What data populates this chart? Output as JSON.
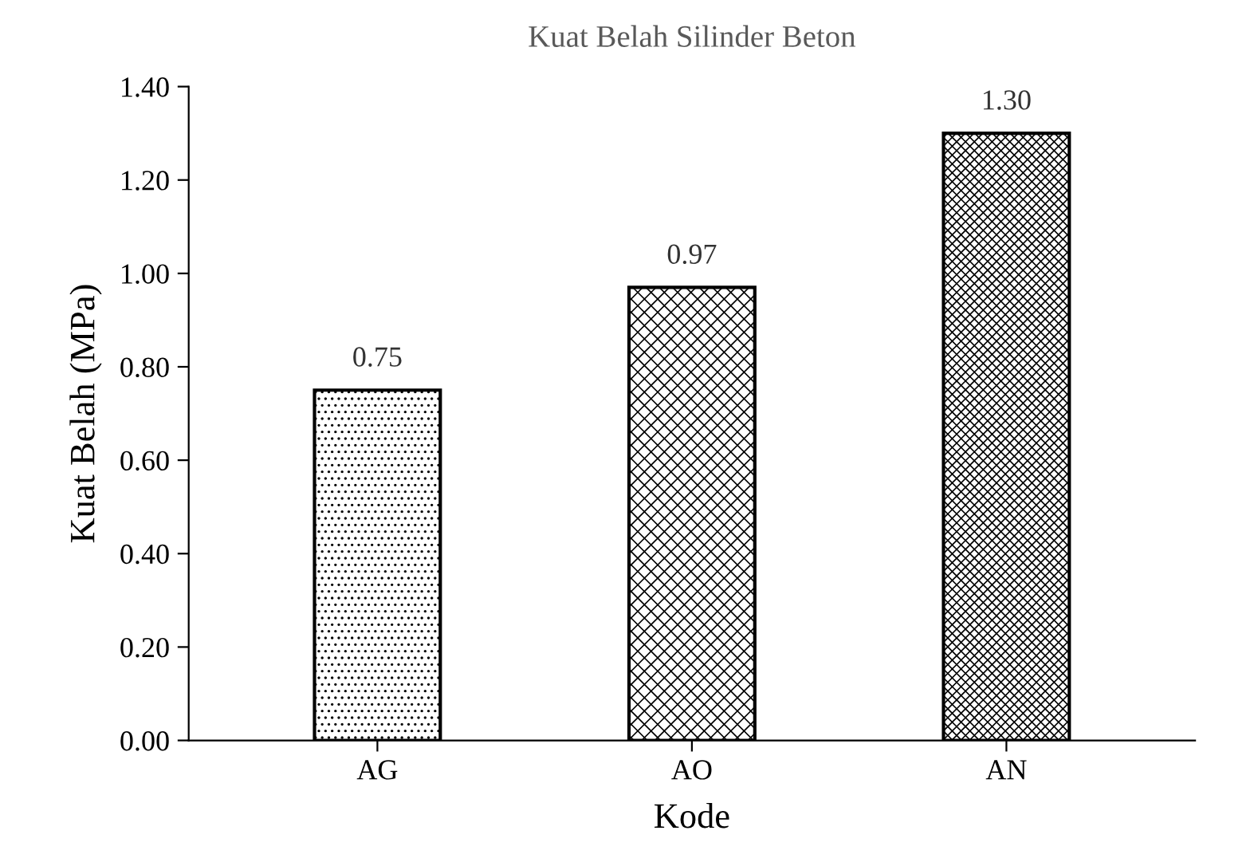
{
  "chart_data": {
    "type": "bar",
    "title": "Kuat Belah Silinder Beton",
    "xlabel": "Kode",
    "ylabel": "Kuat Belah (MPa)",
    "categories": [
      "AG",
      "AO",
      "AN"
    ],
    "values": [
      0.75,
      0.97,
      1.3
    ],
    "value_labels": [
      "0.75",
      "0.97",
      "1.30"
    ],
    "colors": [
      "#000000",
      "#000000",
      "#000000"
    ],
    "ylim": [
      0,
      1.4
    ],
    "yticks": [
      {
        "value": 0,
        "label": "0.00"
      },
      {
        "value": 0.2,
        "label": "0.20"
      },
      {
        "value": 0.4,
        "label": "0.40"
      },
      {
        "value": 0.6,
        "label": "0.60"
      },
      {
        "value": 0.8,
        "label": "0.80"
      },
      {
        "value": 1.0,
        "label": "1.00"
      },
      {
        "value": 1.2,
        "label": "1.20"
      },
      {
        "value": 1.4,
        "label": "1.40"
      }
    ],
    "grid": false,
    "legend": false
  }
}
